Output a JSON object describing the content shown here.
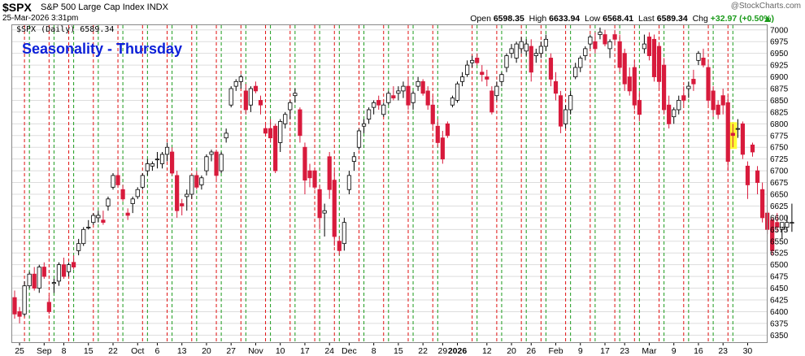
{
  "header": {
    "symbol": "$SPX",
    "name": "S&P 500 Large Cap Index INDX",
    "datetime": "25-Mar-2026 3:31pm",
    "open_label": "Open",
    "open": "6598.35",
    "high_label": "High",
    "high": "6633.94",
    "low_label": "Low",
    "low": "6568.41",
    "last_label": "Last",
    "last": "6589.34",
    "chg_label": "Chg",
    "chg": "+32.97 (+0.50%)",
    "watermark": "@StockCharts.com",
    "legend": "$SPX (Daily) 6589.34"
  },
  "overlay_title": "Seasonality - Thursday",
  "colors": {
    "up_body": "#ffffff",
    "down_body": "#d81b3c",
    "outline": "#000000",
    "red_line": "#e01010",
    "green_line": "#1a9a1a",
    "highlight": "#ffff33",
    "grid": "#dddddd",
    "title": "#0b1fd8"
  },
  "chart_data": {
    "type": "candlestick",
    "y_range": [
      6335,
      7010
    ],
    "y_ticks": [
      6350,
      6375,
      6400,
      6425,
      6450,
      6475,
      6500,
      6525,
      6550,
      6575,
      6600,
      6625,
      6650,
      6675,
      6700,
      6725,
      6750,
      6775,
      6800,
      6825,
      6850,
      6875,
      6900,
      6925,
      6950,
      6975,
      7000
    ],
    "x_labels": [
      {
        "label": "25",
        "session": 1
      },
      {
        "label": "Sep",
        "session": 6
      },
      {
        "label": "8",
        "session": 10
      },
      {
        "label": "15",
        "session": 15
      },
      {
        "label": "22",
        "session": 20
      },
      {
        "label": "Oct",
        "session": 25
      },
      {
        "label": "6",
        "session": 29
      },
      {
        "label": "13",
        "session": 34
      },
      {
        "label": "20",
        "session": 39
      },
      {
        "label": "27",
        "session": 44
      },
      {
        "label": "Nov",
        "session": 49
      },
      {
        "label": "10",
        "session": 54
      },
      {
        "label": "17",
        "session": 59
      },
      {
        "label": "24",
        "session": 64
      },
      {
        "label": "Dec",
        "session": 68
      },
      {
        "label": "8",
        "session": 73
      },
      {
        "label": "15",
        "session": 78
      },
      {
        "label": "22",
        "session": 83
      },
      {
        "label": "29",
        "session": 87
      },
      {
        "label": "2026",
        "session": 90
      },
      {
        "label": "12",
        "session": 96
      },
      {
        "label": "20",
        "session": 101
      },
      {
        "label": "26",
        "session": 105
      },
      {
        "label": "Feb",
        "session": 110
      },
      {
        "label": "9",
        "session": 115
      },
      {
        "label": "17",
        "session": 120
      },
      {
        "label": "23",
        "session": 124
      },
      {
        "label": "Mar",
        "session": 129
      },
      {
        "label": "9",
        "session": 134
      },
      {
        "label": "16",
        "session": 139
      },
      {
        "label": "23",
        "session": 144
      },
      {
        "label": "30",
        "session": 149
      }
    ],
    "thursday_sessions": [
      3,
      8,
      12,
      17,
      22,
      27,
      32,
      37,
      42,
      47,
      52,
      57,
      62,
      66,
      71,
      76,
      81,
      86,
      94,
      99,
      104,
      108,
      113,
      118,
      123,
      127,
      132,
      137,
      142,
      146
    ],
    "wednesday_sessions": [
      2,
      7,
      11,
      16,
      21,
      26,
      31,
      36,
      41,
      46,
      51,
      56,
      61,
      65,
      70,
      75,
      80,
      85,
      93,
      98,
      103,
      107,
      112,
      117,
      122,
      126,
      131,
      136,
      141,
      145
    ],
    "highlight_session": 146,
    "candles": [
      [
        6430,
        6445,
        6385,
        6395
      ],
      [
        6400,
        6410,
        6375,
        6390
      ],
      [
        6395,
        6465,
        6390,
        6455
      ],
      [
        6455,
        6485,
        6450,
        6480
      ],
      [
        6480,
        6495,
        6445,
        6450
      ],
      [
        6450,
        6500,
        6440,
        6495
      ],
      [
        6495,
        6505,
        6470,
        6475
      ],
      [
        6420,
        6435,
        6395,
        6400
      ],
      [
        6460,
        6470,
        6440,
        6462
      ],
      [
        6465,
        6505,
        6455,
        6500
      ],
      [
        6500,
        6515,
        6470,
        6475
      ],
      [
        6485,
        6505,
        6475,
        6500
      ],
      [
        6505,
        6520,
        6490,
        6495
      ],
      [
        6530,
        6555,
        6520,
        6545
      ],
      [
        6545,
        6580,
        6540,
        6575
      ],
      [
        6580,
        6595,
        6575,
        6580
      ],
      [
        6590,
        6610,
        6585,
        6605
      ],
      [
        6600,
        6615,
        6590,
        6605
      ],
      [
        6595,
        6615,
        6585,
        6590
      ],
      [
        6625,
        6645,
        6615,
        6640
      ],
      [
        6665,
        6695,
        6660,
        6690
      ],
      [
        6690,
        6700,
        6665,
        6670
      ],
      [
        6660,
        6670,
        6635,
        6640
      ],
      [
        6610,
        6620,
        6595,
        6605
      ],
      [
        6630,
        6645,
        6610,
        6640
      ],
      [
        6645,
        6665,
        6640,
        6660
      ],
      [
        6665,
        6695,
        6660,
        6690
      ],
      [
        6700,
        6725,
        6690,
        6715
      ],
      [
        6710,
        6720,
        6700,
        6715
      ],
      [
        6725,
        6740,
        6705,
        6725
      ],
      [
        6715,
        6740,
        6705,
        6735
      ],
      [
        6735,
        6760,
        6720,
        6750
      ],
      [
        6740,
        6750,
        6690,
        6695
      ],
      [
        6690,
        6700,
        6600,
        6615
      ],
      [
        6630,
        6640,
        6605,
        6625
      ],
      [
        6645,
        6660,
        6615,
        6650
      ],
      [
        6650,
        6690,
        6640,
        6690
      ],
      [
        6690,
        6700,
        6660,
        6665
      ],
      [
        6670,
        6690,
        6660,
        6685
      ],
      [
        6700,
        6735,
        6690,
        6730
      ],
      [
        6735,
        6745,
        6720,
        6740
      ],
      [
        6740,
        6745,
        6680,
        6690
      ],
      [
        6700,
        6740,
        6695,
        6735
      ],
      [
        6770,
        6790,
        6760,
        6780
      ],
      [
        6840,
        6880,
        6835,
        6875
      ],
      [
        6880,
        6895,
        6870,
        6890
      ],
      [
        6890,
        6905,
        6875,
        6900
      ],
      [
        6870,
        6885,
        6820,
        6830
      ],
      [
        6840,
        6880,
        6825,
        6875
      ],
      [
        6880,
        6890,
        6865,
        6870
      ],
      [
        6850,
        6860,
        6820,
        6840
      ],
      [
        6790,
        6800,
        6775,
        6780
      ],
      [
        6790,
        6810,
        6760,
        6770
      ],
      [
        6795,
        6800,
        6695,
        6700
      ],
      [
        6760,
        6810,
        6740,
        6805
      ],
      [
        6800,
        6825,
        6790,
        6820
      ],
      [
        6830,
        6850,
        6810,
        6845
      ],
      [
        6860,
        6875,
        6845,
        6865
      ],
      [
        6830,
        6835,
        6760,
        6775
      ],
      [
        6750,
        6760,
        6650,
        6680
      ],
      [
        6700,
        6715,
        6665,
        6685
      ],
      [
        6700,
        6705,
        6660,
        6665
      ],
      [
        6660,
        6670,
        6575,
        6600
      ],
      [
        6610,
        6630,
        6560,
        6615
      ],
      [
        6730,
        6740,
        6640,
        6660
      ],
      [
        6680,
        6700,
        6540,
        6560
      ],
      [
        6550,
        6560,
        6520,
        6530
      ],
      [
        6545,
        6600,
        6530,
        6590
      ],
      [
        6660,
        6700,
        6650,
        6690
      ],
      [
        6720,
        6740,
        6700,
        6730
      ],
      [
        6750,
        6790,
        6745,
        6785
      ],
      [
        6795,
        6810,
        6780,
        6800
      ],
      [
        6810,
        6835,
        6800,
        6830
      ],
      [
        6835,
        6850,
        6820,
        6845
      ],
      [
        6850,
        6860,
        6830,
        6840
      ],
      [
        6820,
        6845,
        6815,
        6840
      ],
      [
        6845,
        6870,
        6840,
        6865
      ],
      [
        6860,
        6880,
        6850,
        6855
      ],
      [
        6865,
        6880,
        6850,
        6870
      ],
      [
        6870,
        6890,
        6855,
        6880
      ],
      [
        6880,
        6895,
        6830,
        6840
      ],
      [
        6845,
        6870,
        6830,
        6865
      ],
      [
        6880,
        6900,
        6870,
        6890
      ],
      [
        6890,
        6895,
        6860,
        6865
      ],
      [
        6870,
        6880,
        6830,
        6840
      ],
      [
        6840,
        6860,
        6790,
        6800
      ],
      [
        6795,
        6810,
        6750,
        6760
      ],
      [
        6770,
        6785,
        6715,
        6725
      ],
      [
        6800,
        6805,
        6770,
        6775
      ],
      [
        6840,
        6860,
        6835,
        6855
      ],
      [
        6850,
        6890,
        6845,
        6885
      ],
      [
        6890,
        6910,
        6880,
        6900
      ],
      [
        6905,
        6935,
        6900,
        6925
      ],
      [
        6930,
        6945,
        6920,
        6935
      ],
      [
        6940,
        6950,
        6925,
        6930
      ],
      [
        6910,
        6925,
        6890,
        6905
      ],
      [
        6900,
        6915,
        6880,
        6895
      ],
      [
        6870,
        6880,
        6820,
        6825
      ],
      [
        6860,
        6890,
        6850,
        6880
      ],
      [
        6890,
        6910,
        6880,
        6905
      ],
      [
        6920,
        6950,
        6910,
        6945
      ],
      [
        6950,
        6970,
        6940,
        6960
      ],
      [
        6940,
        6975,
        6930,
        6970
      ],
      [
        6960,
        6985,
        6950,
        6975
      ],
      [
        6955,
        6980,
        6945,
        6970
      ],
      [
        6965,
        6980,
        6890,
        6910
      ],
      [
        6945,
        6960,
        6930,
        6950
      ],
      [
        6950,
        6975,
        6940,
        6965
      ],
      [
        6965,
        6990,
        6955,
        6980
      ],
      [
        6940,
        6950,
        6880,
        6895
      ],
      [
        6890,
        6910,
        6850,
        6865
      ],
      [
        6860,
        6870,
        6780,
        6795
      ],
      [
        6800,
        6840,
        6790,
        6830
      ],
      [
        6830,
        6870,
        6820,
        6860
      ],
      [
        6900,
        6930,
        6895,
        6920
      ],
      [
        6920,
        6945,
        6910,
        6940
      ],
      [
        6945,
        6965,
        6935,
        6960
      ],
      [
        6970,
        6990,
        6960,
        6985
      ],
      [
        6975,
        6995,
        6950,
        6960
      ],
      [
        6990,
        7005,
        6980,
        6995
      ],
      [
        6990,
        7000,
        6965,
        6970
      ],
      [
        6960,
        6980,
        6940,
        6975
      ],
      [
        6990,
        7000,
        6970,
        6980
      ],
      [
        6975,
        6990,
        6910,
        6920
      ],
      [
        6950,
        6960,
        6870,
        6885
      ],
      [
        6900,
        6920,
        6860,
        6870
      ],
      [
        6920,
        6935,
        6830,
        6840
      ],
      [
        6850,
        6870,
        6805,
        6820
      ],
      [
        6960,
        6990,
        6950,
        6970
      ],
      [
        6985,
        6995,
        6935,
        6945
      ],
      [
        6980,
        6990,
        6890,
        6900
      ],
      [
        6965,
        6970,
        6875,
        6890
      ],
      [
        6925,
        6940,
        6820,
        6830
      ],
      [
        6840,
        6860,
        6790,
        6800
      ],
      [
        6815,
        6835,
        6800,
        6830
      ],
      [
        6830,
        6860,
        6820,
        6850
      ],
      [
        6860,
        6880,
        6840,
        6850
      ],
      [
        6875,
        6890,
        6855,
        6880
      ],
      [
        6895,
        6915,
        6870,
        6885
      ],
      [
        6935,
        6955,
        6925,
        6950
      ],
      [
        6940,
        6960,
        6920,
        6925
      ],
      [
        6920,
        6930,
        6840,
        6850
      ],
      [
        6870,
        6880,
        6815,
        6830
      ],
      [
        6840,
        6850,
        6810,
        6820
      ],
      [
        6860,
        6875,
        6820,
        6840
      ],
      [
        6845,
        6860,
        6700,
        6720
      ],
      [
        6780,
        6800,
        6750,
        6775
      ],
      [
        6790,
        6810,
        6770,
        6790
      ],
      [
        6800,
        6805,
        6725,
        6735
      ],
      [
        6710,
        6720,
        6640,
        6670
      ],
      [
        6755,
        6760,
        6730,
        6740
      ],
      [
        6700,
        6710,
        6650,
        6675
      ],
      [
        6660,
        6675,
        6590,
        6600
      ],
      [
        6610,
        6615,
        6565,
        6575
      ],
      [
        6595,
        6600,
        6520,
        6530
      ],
      [
        6590,
        6610,
        6570,
        6580
      ],
      [
        6575,
        6590,
        6555,
        6590
      ],
      [
        6580,
        6605,
        6570,
        6590
      ],
      [
        6590,
        6630,
        6570,
        6590
      ]
    ]
  }
}
